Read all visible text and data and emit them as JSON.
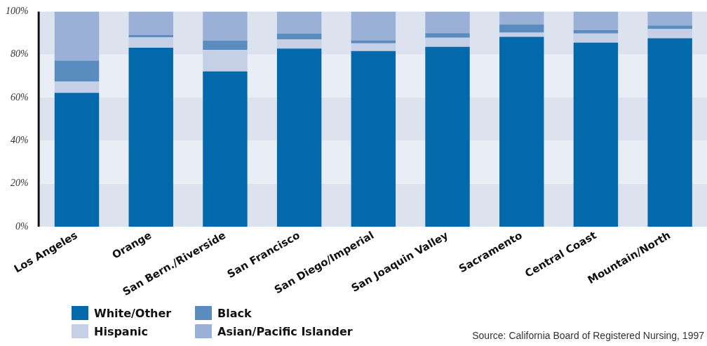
{
  "chart_data": {
    "type": "bar",
    "stacked": true,
    "categories": [
      "Los Angeles",
      "Orange",
      "San Bern./Riverside",
      "San Francisco",
      "San Diego/Imperial",
      "San Joaquin Valley",
      "Sacramento",
      "Central Coast",
      "Mountain/North"
    ],
    "series": [
      {
        "name": "White/Other",
        "color": "#0369ab",
        "values": [
          62.2,
          83.2,
          72.2,
          82.8,
          81.6,
          83.6,
          88.2,
          85.5,
          87.6
        ]
      },
      {
        "name": "Hispanic",
        "color": "#c5cfe6",
        "values": [
          5.3,
          4.9,
          10.0,
          4.3,
          3.6,
          4.2,
          2.0,
          4.3,
          4.3
        ]
      },
      {
        "name": "Black",
        "color": "#5b8cbf",
        "values": [
          9.7,
          1.0,
          4.3,
          2.7,
          1.4,
          2.1,
          3.7,
          1.6,
          1.6
        ]
      },
      {
        "name": "Asian/Pacific Islander",
        "color": "#9bb0d6",
        "values": [
          22.8,
          10.9,
          13.5,
          10.2,
          13.4,
          10.1,
          6.1,
          8.6,
          6.5
        ]
      }
    ],
    "ylim": [
      0,
      100
    ],
    "yticks": [
      {
        "value": 0,
        "label": "0%"
      },
      {
        "value": 20,
        "label": "20%"
      },
      {
        "value": 40,
        "label": "40%"
      },
      {
        "value": 60,
        "label": "60%"
      },
      {
        "value": 80,
        "label": "80%"
      },
      {
        "value": 100,
        "label": "100%"
      }
    ],
    "legend": "bottom left",
    "annotations": [
      "Source: California Board of Registered Nursing, 1997"
    ]
  }
}
